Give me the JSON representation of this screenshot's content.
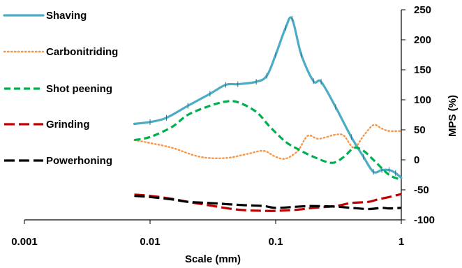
{
  "chart_data": {
    "type": "line",
    "xlabel": "Scale (mm)",
    "ylabel": "MPS (%)",
    "x_scale": "log",
    "xlim": [
      0.001,
      1
    ],
    "ylim": [
      -100,
      250
    ],
    "x_ticks": [
      {
        "value": 0.001,
        "label": "0.001"
      },
      {
        "value": 0.01,
        "label": "0.01"
      },
      {
        "value": 0.1,
        "label": "0.1"
      },
      {
        "value": 1,
        "label": "1"
      }
    ],
    "y_ticks": [
      {
        "value": 250,
        "label": "250"
      },
      {
        "value": 200,
        "label": "200"
      },
      {
        "value": 150,
        "label": "150"
      },
      {
        "value": 100,
        "label": "100"
      },
      {
        "value": 50,
        "label": "50"
      },
      {
        "value": 0,
        "label": "0"
      },
      {
        "value": -50,
        "label": "-50"
      },
      {
        "value": -100,
        "label": "-100"
      }
    ],
    "grid": false,
    "legend_position": "left",
    "series": [
      {
        "name": "Shaving",
        "color": "#4bacc6",
        "style": "solid-with-markers",
        "points": [
          [
            0.0075,
            60
          ],
          [
            0.01,
            63
          ],
          [
            0.0135,
            70
          ],
          [
            0.02,
            90
          ],
          [
            0.03,
            110
          ],
          [
            0.04,
            125
          ],
          [
            0.05,
            126
          ],
          [
            0.07,
            130
          ],
          [
            0.085,
            140
          ],
          [
            0.1,
            175
          ],
          [
            0.12,
            220
          ],
          [
            0.135,
            235
          ],
          [
            0.16,
            175
          ],
          [
            0.2,
            131
          ],
          [
            0.23,
            130
          ],
          [
            0.3,
            88
          ],
          [
            0.4,
            38
          ],
          [
            0.5,
            5
          ],
          [
            0.6,
            -20
          ],
          [
            0.7,
            -17
          ],
          [
            0.8,
            -17
          ],
          [
            0.9,
            -22
          ],
          [
            1.0,
            -30
          ]
        ]
      },
      {
        "name": "Carbonitriding",
        "color": "#f79646",
        "style": "dotted",
        "points": [
          [
            0.0075,
            33
          ],
          [
            0.01,
            28
          ],
          [
            0.015,
            20
          ],
          [
            0.025,
            5
          ],
          [
            0.04,
            3
          ],
          [
            0.06,
            10
          ],
          [
            0.08,
            15
          ],
          [
            0.1,
            5
          ],
          [
            0.12,
            2
          ],
          [
            0.15,
            15
          ],
          [
            0.18,
            40
          ],
          [
            0.22,
            35
          ],
          [
            0.3,
            42
          ],
          [
            0.35,
            40
          ],
          [
            0.42,
            20
          ],
          [
            0.5,
            40
          ],
          [
            0.6,
            58
          ],
          [
            0.7,
            52
          ],
          [
            0.8,
            48
          ],
          [
            1.0,
            48
          ]
        ]
      },
      {
        "name": "Shot peening",
        "color": "#00b050",
        "style": "dashed",
        "points": [
          [
            0.0075,
            33
          ],
          [
            0.01,
            38
          ],
          [
            0.015,
            55
          ],
          [
            0.02,
            75
          ],
          [
            0.03,
            90
          ],
          [
            0.04,
            97
          ],
          [
            0.05,
            96
          ],
          [
            0.07,
            80
          ],
          [
            0.09,
            55
          ],
          [
            0.12,
            30
          ],
          [
            0.15,
            18
          ],
          [
            0.2,
            5
          ],
          [
            0.28,
            -5
          ],
          [
            0.35,
            5
          ],
          [
            0.42,
            20
          ],
          [
            0.5,
            15
          ],
          [
            0.6,
            0
          ],
          [
            0.8,
            -25
          ],
          [
            1.0,
            -33
          ]
        ]
      },
      {
        "name": "Grinding",
        "color": "#c00000",
        "style": "long-dashed",
        "points": [
          [
            0.0075,
            -58
          ],
          [
            0.01,
            -60
          ],
          [
            0.015,
            -65
          ],
          [
            0.02,
            -70
          ],
          [
            0.03,
            -76
          ],
          [
            0.05,
            -83
          ],
          [
            0.08,
            -85
          ],
          [
            0.1,
            -85
          ],
          [
            0.15,
            -83
          ],
          [
            0.2,
            -80
          ],
          [
            0.3,
            -77
          ],
          [
            0.4,
            -72
          ],
          [
            0.55,
            -70
          ],
          [
            0.65,
            -66
          ],
          [
            0.8,
            -62
          ],
          [
            1.0,
            -57
          ]
        ]
      },
      {
        "name": "Powerhoning",
        "color": "#000000",
        "style": "long-dashed",
        "points": [
          [
            0.0075,
            -60
          ],
          [
            0.01,
            -62
          ],
          [
            0.015,
            -66
          ],
          [
            0.02,
            -70
          ],
          [
            0.03,
            -72
          ],
          [
            0.05,
            -75
          ],
          [
            0.08,
            -77
          ],
          [
            0.1,
            -80
          ],
          [
            0.15,
            -78
          ],
          [
            0.2,
            -77
          ],
          [
            0.3,
            -78
          ],
          [
            0.4,
            -80
          ],
          [
            0.55,
            -82
          ],
          [
            0.7,
            -80
          ],
          [
            0.8,
            -81
          ],
          [
            1.0,
            -80
          ]
        ]
      }
    ]
  }
}
